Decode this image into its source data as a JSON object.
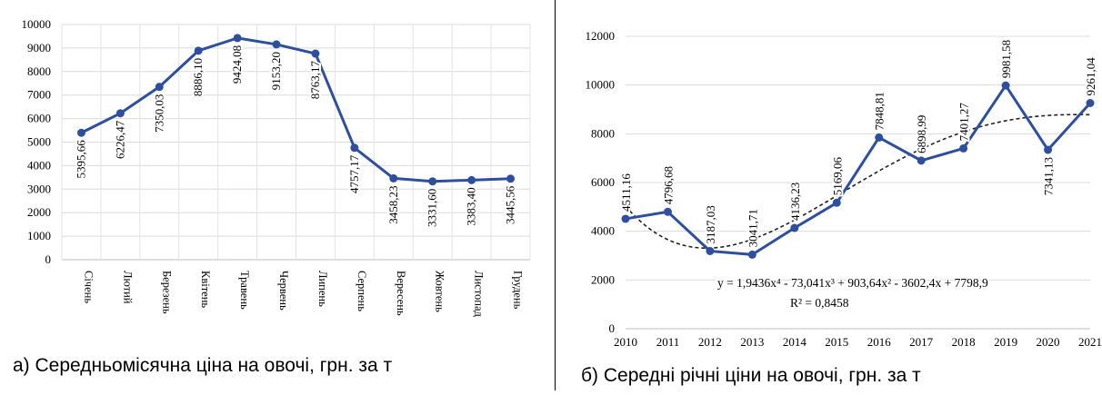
{
  "chart_data": [
    {
      "type": "line",
      "caption": "а) Середньомісячна ціна на овочі, грн. за т",
      "categories": [
        "Січень",
        "Лютий",
        "Березень",
        "Квітень",
        "Травень",
        "Червень",
        "Липень",
        "Серпень",
        "Вересень",
        "Жовтень",
        "Листопад",
        "Грудень"
      ],
      "values": [
        5395.66,
        6226.47,
        7350.03,
        8886.1,
        9424.08,
        9153.2,
        8763.17,
        4757.17,
        3458.23,
        3331.6,
        3383.4,
        3445.56
      ],
      "data_labels": [
        "5395,66",
        "6226,47",
        "7350,03",
        "8886,10",
        "9424,08",
        "9153,20",
        "8763,17",
        "4757,17",
        "3458,23",
        "3331,60",
        "3383,40",
        "3445,56"
      ],
      "ylim": [
        0,
        10000
      ],
      "yticks": [
        0,
        1000,
        2000,
        3000,
        4000,
        5000,
        6000,
        7000,
        8000,
        9000,
        10000
      ],
      "ytick_labels": [
        "0",
        "1000",
        "2000",
        "3000",
        "4000",
        "5000",
        "6000",
        "7000",
        "8000",
        "9000",
        "10000"
      ],
      "grid": true,
      "line_color": "#2e4f9e"
    },
    {
      "type": "line",
      "caption": "б) Середні річні ціни на овочі, грн. за т",
      "categories": [
        "2010",
        "2011",
        "2012",
        "2013",
        "2014",
        "2015",
        "2016",
        "2017",
        "2018",
        "2019",
        "2020",
        "2021"
      ],
      "values": [
        4511.16,
        4796.68,
        3187.03,
        3041.71,
        4136.23,
        5169.06,
        7848.81,
        6898.99,
        7401.27,
        9981.58,
        7341.13,
        9261.04
      ],
      "data_labels": [
        "4511,16",
        "4796,68",
        "3187,03",
        "3041,71",
        "4136,23",
        "5169,06",
        "7848,81",
        "6898,99",
        "7401,27",
        "9981,58",
        "7341,13",
        "9261,04"
      ],
      "ylim": [
        0,
        12000
      ],
      "yticks": [
        0,
        2000,
        4000,
        6000,
        8000,
        10000,
        12000
      ],
      "ytick_labels": [
        "0",
        "2000",
        "4000",
        "6000",
        "8000",
        "10000",
        "12000"
      ],
      "grid": true,
      "line_color": "#2e4f9e",
      "trendline": {
        "type": "polynomial",
        "coefficients": [
          1.9436,
          -73.041,
          903.64,
          -3602.4,
          7798.9
        ],
        "equation": "y = 1,9436x⁴ - 73,041x³ + 903,64x² - 3602,4x + 7798,9",
        "r_squared": "R² = 0,8458"
      }
    }
  ]
}
